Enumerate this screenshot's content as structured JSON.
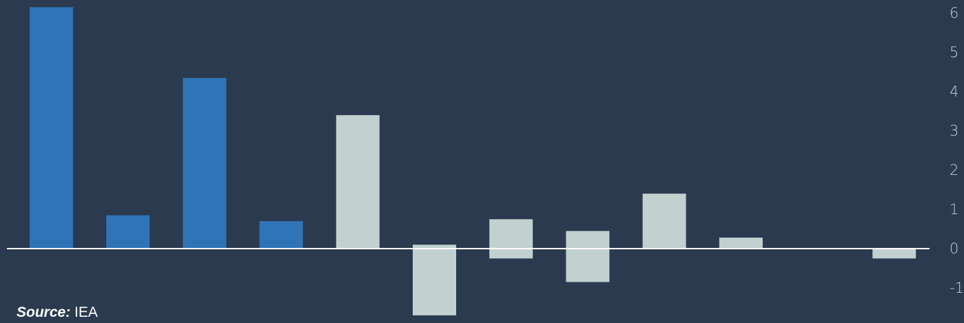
{
  "chart_data": {
    "type": "bar",
    "title": "",
    "xlabel": "",
    "ylabel": "",
    "ylim": [
      -1.2,
      6.3
    ],
    "yticks": [
      "6",
      "5",
      "4",
      "3",
      "2",
      "1",
      "0",
      "-1"
    ],
    "ytick_values": [
      6,
      5,
      4,
      3,
      2,
      1,
      0,
      -1
    ],
    "y_axis_position": "right",
    "grid": false,
    "colors": {
      "background": "#2b3a4e",
      "highlight": "#2f74b6",
      "other": "#c2d0d0",
      "zero_line": "#ffffff",
      "tick_text": "#c9d1d9"
    },
    "bars": [
      {
        "low": 0,
        "high": 6.15,
        "highlight": true
      },
      {
        "low": 0,
        "high": 0.85,
        "highlight": true
      },
      {
        "low": 0,
        "high": 4.35,
        "highlight": true
      },
      {
        "low": 0,
        "high": 0.7,
        "highlight": true
      },
      {
        "low": 0,
        "high": 3.4,
        "highlight": false
      },
      {
        "low": -1.7,
        "high": 0.1,
        "highlight": false
      },
      {
        "low": -0.25,
        "high": 0.75,
        "highlight": false
      },
      {
        "low": -0.85,
        "high": 0.45,
        "highlight": false
      },
      {
        "low": 0,
        "high": 1.4,
        "highlight": false
      },
      {
        "low": 0,
        "high": 0.28,
        "highlight": false
      },
      {
        "low": 0,
        "high": 0,
        "highlight": false
      },
      {
        "low": -0.25,
        "high": 0,
        "highlight": false
      }
    ]
  },
  "source": {
    "label": "Source:",
    "text": "IEA"
  }
}
